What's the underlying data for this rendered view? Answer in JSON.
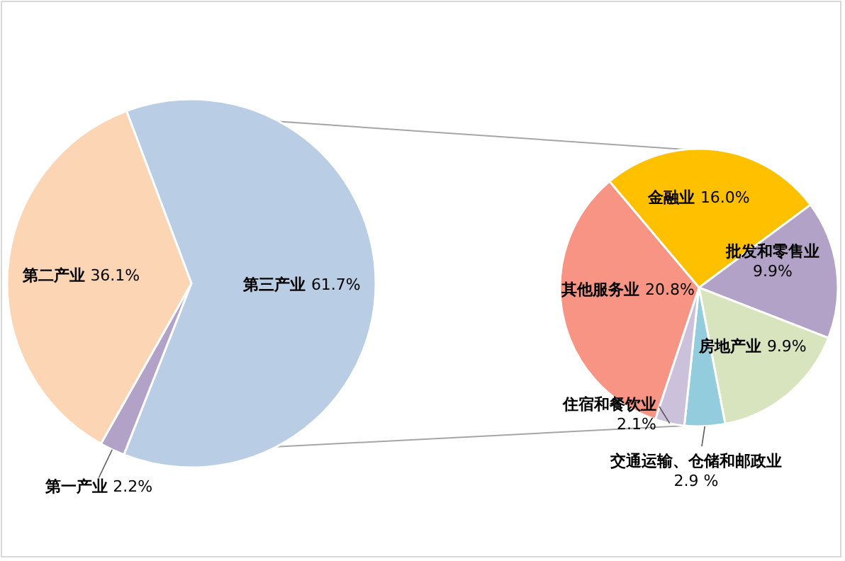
{
  "chart_data": [
    {
      "type": "pie",
      "categories": [
        "第三产业",
        "第一产业",
        "第二产业"
      ],
      "values": [
        61.7,
        2.2,
        36.1
      ],
      "colors": [
        "#b9cde5",
        "#b3a2c7",
        "#fcd5b5"
      ],
      "value_labels": [
        "61.7%",
        "2.2%",
        "36.1%"
      ]
    },
    {
      "type": "pie",
      "categories": [
        "金融业",
        "批发和零售业",
        "房地产业",
        "交通运输、仓储和邮政业",
        "住宿和餐饮业",
        "其他服务业"
      ],
      "values": [
        16.0,
        9.9,
        9.9,
        2.9,
        2.1,
        20.8
      ],
      "colors": [
        "#ffc000",
        "#b3a2c7",
        "#d7e4bd",
        "#93cddd",
        "#ccc1da",
        "#f79483"
      ],
      "value_labels": [
        "16.0%",
        "9.9%",
        "9.9%",
        "2.9 %",
        "2.1%",
        "20.8%"
      ]
    }
  ]
}
